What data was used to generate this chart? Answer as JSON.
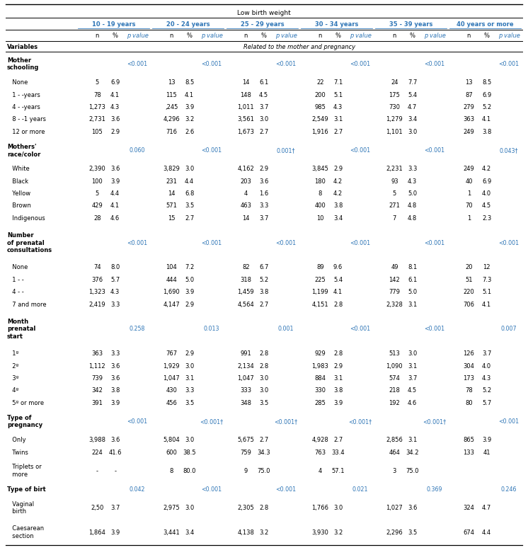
{
  "title": "Low birth weight",
  "subtitle": "Related to the mother and pregnancy",
  "age_groups": [
    "10 - 19 years",
    "20 - 24 years",
    "25 - 29 years",
    "30 - 34 years",
    "35 - 39 years",
    "40 years or more"
  ],
  "rows": [
    {
      "label": "Mother\nschooling",
      "type": "category",
      "values": [
        [
          "",
          "",
          "<0.001"
        ],
        [
          "",
          "",
          "<0.001"
        ],
        [
          "",
          "",
          "<0.001"
        ],
        [
          "",
          "",
          "<0.001"
        ],
        [
          "",
          "",
          "<0.001"
        ],
        [
          "",
          "",
          "<0.001"
        ]
      ]
    },
    {
      "label": "  None",
      "type": "data",
      "values": [
        [
          "5",
          "6.9",
          ""
        ],
        [
          "13",
          "8.5",
          ""
        ],
        [
          "14",
          "6.1",
          ""
        ],
        [
          "22",
          "7.1",
          ""
        ],
        [
          "24",
          "7.7",
          ""
        ],
        [
          "13",
          "8.5",
          ""
        ]
      ]
    },
    {
      "label": "  1 - -years",
      "type": "data",
      "values": [
        [
          "78",
          "4.1",
          ""
        ],
        [
          "115",
          "4.1",
          ""
        ],
        [
          "148",
          "4.5",
          ""
        ],
        [
          "200",
          "5.1",
          ""
        ],
        [
          "175",
          "5.4",
          ""
        ],
        [
          "87",
          "6.9",
          ""
        ]
      ]
    },
    {
      "label": "  4 - -years",
      "type": "data",
      "values": [
        [
          "1,273",
          "4.3",
          ""
        ],
        [
          ",245",
          "3.9",
          ""
        ],
        [
          "1,011",
          "3.7",
          ""
        ],
        [
          "985",
          "4.3",
          ""
        ],
        [
          "730",
          "4.7",
          ""
        ],
        [
          "279",
          "5.2",
          ""
        ]
      ]
    },
    {
      "label": "  8 - -1 years",
      "type": "data",
      "values": [
        [
          "2,731",
          "3.6",
          ""
        ],
        [
          "4,296",
          "3.2",
          ""
        ],
        [
          "3,561",
          "3.0",
          ""
        ],
        [
          "2,549",
          "3.1",
          ""
        ],
        [
          "1,279",
          "3.4",
          ""
        ],
        [
          "363",
          "4.1",
          ""
        ]
      ]
    },
    {
      "label": "  12 or more",
      "type": "data",
      "values": [
        [
          "105",
          "2.9",
          ""
        ],
        [
          "716",
          "2.6",
          ""
        ],
        [
          "1,673",
          "2.7",
          ""
        ],
        [
          "1,916",
          "2.7",
          ""
        ],
        [
          "1,101",
          "3.0",
          ""
        ],
        [
          "249",
          "3.8",
          ""
        ]
      ]
    },
    {
      "label": "Mothers'\nrace/color",
      "type": "category",
      "values": [
        [
          "",
          "",
          "0.060"
        ],
        [
          "",
          "",
          "<0.001"
        ],
        [
          "",
          "",
          "0.001†"
        ],
        [
          "",
          "",
          "<0.001"
        ],
        [
          "",
          "",
          "<0.001"
        ],
        [
          "",
          "",
          "0.043†"
        ]
      ]
    },
    {
      "label": "  White",
      "type": "data",
      "values": [
        [
          "2,390",
          "3.6",
          ""
        ],
        [
          "3,829",
          "3.0",
          ""
        ],
        [
          "4,162",
          "2.9",
          ""
        ],
        [
          "3,845",
          "2.9",
          ""
        ],
        [
          "2,231",
          "3.3",
          ""
        ],
        [
          "249",
          "4.2",
          ""
        ]
      ]
    },
    {
      "label": "  Black",
      "type": "data",
      "values": [
        [
          "100",
          "3.9",
          ""
        ],
        [
          "231",
          "4.4",
          ""
        ],
        [
          "203",
          "3.6",
          ""
        ],
        [
          "180",
          "4.2",
          ""
        ],
        [
          "93",
          "4.3",
          ""
        ],
        [
          "40",
          "6.9",
          ""
        ]
      ]
    },
    {
      "label": "  Yellow",
      "type": "data",
      "values": [
        [
          "5",
          "4.4",
          ""
        ],
        [
          "14",
          "6.8",
          ""
        ],
        [
          "4",
          "1.6",
          ""
        ],
        [
          "8",
          "4.2",
          ""
        ],
        [
          "5",
          "5.0",
          ""
        ],
        [
          "1",
          "4.0",
          ""
        ]
      ]
    },
    {
      "label": "  Brown",
      "type": "data",
      "values": [
        [
          "429",
          "4.1",
          ""
        ],
        [
          "571",
          "3.5",
          ""
        ],
        [
          "463",
          "3.3",
          ""
        ],
        [
          "400",
          "3.8",
          ""
        ],
        [
          "271",
          "4.8",
          ""
        ],
        [
          "70",
          "4.5",
          ""
        ]
      ]
    },
    {
      "label": "  Indigenous",
      "type": "data",
      "values": [
        [
          "28",
          "4.6",
          ""
        ],
        [
          "15",
          "2.7",
          ""
        ],
        [
          "14",
          "3.7",
          ""
        ],
        [
          "10",
          "3.4",
          ""
        ],
        [
          "7",
          "4.8",
          ""
        ],
        [
          "1",
          "2.3",
          ""
        ]
      ]
    },
    {
      "label": "Number\nof prenatal\nconsultations",
      "type": "category",
      "values": [
        [
          "",
          "",
          "<0.001"
        ],
        [
          "",
          "",
          "<0.001"
        ],
        [
          "",
          "",
          "<0.001"
        ],
        [
          "",
          "",
          "<0.001"
        ],
        [
          "",
          "",
          "<0.001"
        ],
        [
          "",
          "",
          "<0.001"
        ]
      ]
    },
    {
      "label": "  None",
      "type": "data",
      "values": [
        [
          "74",
          "8.0",
          ""
        ],
        [
          "104",
          "7.2",
          ""
        ],
        [
          "82",
          "6.7",
          ""
        ],
        [
          "89",
          "9.6",
          ""
        ],
        [
          "49",
          "8.1",
          ""
        ],
        [
          "20",
          "12",
          ""
        ]
      ]
    },
    {
      "label": "  1 - -",
      "type": "data",
      "values": [
        [
          "376",
          "5.7",
          ""
        ],
        [
          "444",
          "5.0",
          ""
        ],
        [
          "318",
          "5.2",
          ""
        ],
        [
          "225",
          "5.4",
          ""
        ],
        [
          "142",
          "6.1",
          ""
        ],
        [
          "51",
          "7.3",
          ""
        ]
      ]
    },
    {
      "label": "  4 - -",
      "type": "data",
      "values": [
        [
          "1,323",
          "4.3",
          ""
        ],
        [
          "1,690",
          "3.9",
          ""
        ],
        [
          "1,459",
          "3.8",
          ""
        ],
        [
          "1,199",
          "4.1",
          ""
        ],
        [
          "779",
          "5.0",
          ""
        ],
        [
          "220",
          "5.1",
          ""
        ]
      ]
    },
    {
      "label": "  7 and more",
      "type": "data",
      "values": [
        [
          "2,419",
          "3.3",
          ""
        ],
        [
          "4,147",
          "2.9",
          ""
        ],
        [
          "4,564",
          "2.7",
          ""
        ],
        [
          "4,151",
          "2.8",
          ""
        ],
        [
          "2,328",
          "3.1",
          ""
        ],
        [
          "706",
          "4.1",
          ""
        ]
      ]
    },
    {
      "label": "Month\nprenatal\nstart",
      "type": "category",
      "values": [
        [
          "",
          "",
          "0.258"
        ],
        [
          "",
          "",
          "0.013"
        ],
        [
          "",
          "",
          "0.001"
        ],
        [
          "",
          "",
          "<0.001"
        ],
        [
          "",
          "",
          "<0.001"
        ],
        [
          "",
          "",
          "0.007"
        ]
      ]
    },
    {
      "label": "  1º",
      "type": "data",
      "values": [
        [
          "363",
          "3.3",
          ""
        ],
        [
          "767",
          "2.9",
          ""
        ],
        [
          "991",
          "2.8",
          ""
        ],
        [
          "929",
          "2.8",
          ""
        ],
        [
          "513",
          "3.0",
          ""
        ],
        [
          "126",
          "3.7",
          ""
        ]
      ]
    },
    {
      "label": "  2º",
      "type": "data",
      "values": [
        [
          "1,112",
          "3.6",
          ""
        ],
        [
          "1,929",
          "3.0",
          ""
        ],
        [
          "2,134",
          "2.8",
          ""
        ],
        [
          "1,983",
          "2.9",
          ""
        ],
        [
          "1,090",
          "3.1",
          ""
        ],
        [
          "304",
          "4.0",
          ""
        ]
      ]
    },
    {
      "label": "  3º",
      "type": "data",
      "values": [
        [
          "739",
          "3.6",
          ""
        ],
        [
          "1,047",
          "3.1",
          ""
        ],
        [
          "1,047",
          "3.0",
          ""
        ],
        [
          "884",
          "3.1",
          ""
        ],
        [
          "574",
          "3.7",
          ""
        ],
        [
          "173",
          "4.3",
          ""
        ]
      ]
    },
    {
      "label": "  4º",
      "type": "data",
      "values": [
        [
          "342",
          "3.8",
          ""
        ],
        [
          "430",
          "3.3",
          ""
        ],
        [
          "333",
          "3.0",
          ""
        ],
        [
          "330",
          "3.8",
          ""
        ],
        [
          "218",
          "4.5",
          ""
        ],
        [
          "78",
          "5.2",
          ""
        ]
      ]
    },
    {
      "label": "  5º or more",
      "type": "data",
      "values": [
        [
          "391",
          "3.9",
          ""
        ],
        [
          "456",
          "3.5",
          ""
        ],
        [
          "348",
          "3.5",
          ""
        ],
        [
          "285",
          "3.9",
          ""
        ],
        [
          "192",
          "4.6",
          ""
        ],
        [
          "80",
          "5.7",
          ""
        ]
      ]
    },
    {
      "label": "Type of\npregnancy",
      "type": "category",
      "values": [
        [
          "",
          "",
          "<0.001"
        ],
        [
          "",
          "",
          "<0.001†"
        ],
        [
          "",
          "",
          "<0.001†"
        ],
        [
          "",
          "",
          "<0.001†"
        ],
        [
          "",
          "",
          "<0.001†"
        ],
        [
          "",
          "",
          "<0.001"
        ]
      ]
    },
    {
      "label": "  Only",
      "type": "data",
      "values": [
        [
          "3,988",
          "3.6",
          ""
        ],
        [
          "5,804",
          "3.0",
          ""
        ],
        [
          "5,675",
          "2.7",
          ""
        ],
        [
          "4,928",
          "2.7",
          ""
        ],
        [
          "2,856",
          "3.1",
          ""
        ],
        [
          "865",
          "3.9",
          ""
        ]
      ]
    },
    {
      "label": "  Twins",
      "type": "data",
      "values": [
        [
          "224",
          "41.6",
          ""
        ],
        [
          "600",
          "38.5",
          ""
        ],
        [
          "759",
          "34.3",
          ""
        ],
        [
          "763",
          "33.4",
          ""
        ],
        [
          "464",
          "34.2",
          ""
        ],
        [
          "133",
          "41",
          ""
        ]
      ]
    },
    {
      "label": "  Triplets or\n  more",
      "type": "data",
      "values": [
        [
          "-",
          "-",
          ""
        ],
        [
          "8",
          "80.0",
          ""
        ],
        [
          "9",
          "75.0",
          ""
        ],
        [
          "4",
          "57.1",
          ""
        ],
        [
          "3",
          "75.0",
          ""
        ],
        [
          "",
          "",
          ""
        ]
      ]
    },
    {
      "label": "Type of birt",
      "type": "category",
      "values": [
        [
          "",
          "",
          "0.042"
        ],
        [
          "",
          "",
          "<0.001"
        ],
        [
          "",
          "",
          "<0.001"
        ],
        [
          "",
          "",
          "0.021"
        ],
        [
          "",
          "",
          "0.369"
        ],
        [
          "",
          "",
          "0.246"
        ]
      ]
    },
    {
      "label": "  Vaginal\n  birth",
      "type": "data",
      "values": [
        [
          "2,50",
          "3.7",
          ""
        ],
        [
          "2,975",
          "3.0",
          ""
        ],
        [
          "2,305",
          "2.8",
          ""
        ],
        [
          "1,766",
          "3.0",
          ""
        ],
        [
          "1,027",
          "3.6",
          ""
        ],
        [
          "324",
          "4.7",
          ""
        ]
      ]
    },
    {
      "label": "  Caesarean\n  section",
      "type": "data",
      "values": [
        [
          "1,864",
          "3.9",
          ""
        ],
        [
          "3,441",
          "3.4",
          ""
        ],
        [
          "4,138",
          "3.2",
          ""
        ],
        [
          "3,930",
          "3.2",
          ""
        ],
        [
          "2,296",
          "3.5",
          ""
        ],
        [
          "674",
          "4.4",
          ""
        ]
      ]
    }
  ],
  "blue_color": "#2e75b6",
  "black_color": "#000000",
  "bg_color": "#ffffff"
}
